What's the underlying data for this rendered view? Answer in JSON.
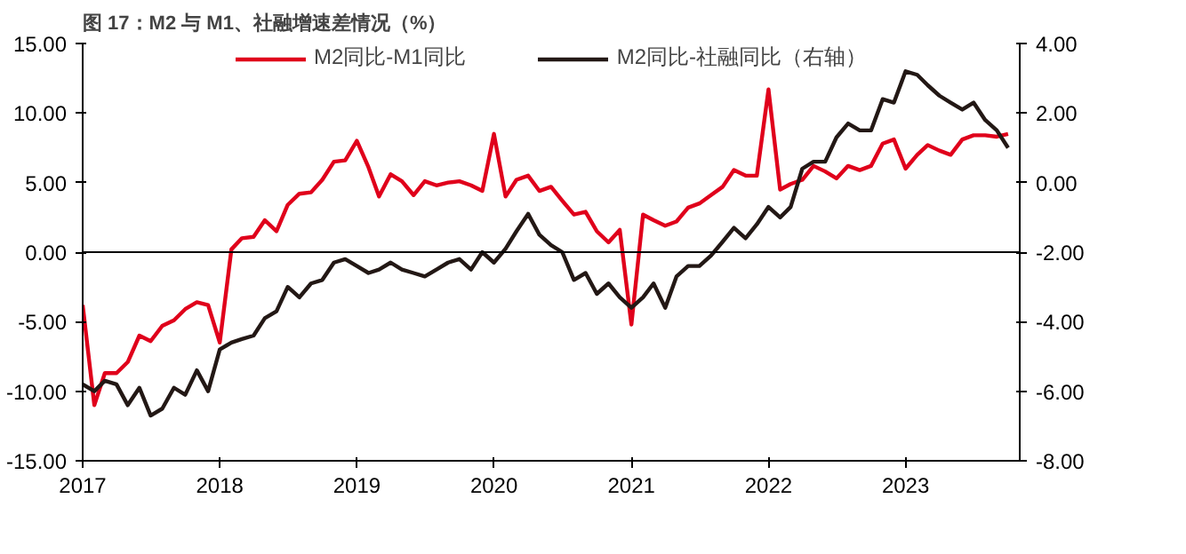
{
  "chart_data": {
    "type": "line",
    "title": "图 17：M2 与 M1、社融增速差情况（%）",
    "x": [
      "2017-01",
      "2017-02",
      "2017-03",
      "2017-04",
      "2017-05",
      "2017-06",
      "2017-07",
      "2017-08",
      "2017-09",
      "2017-10",
      "2017-11",
      "2017-12",
      "2018-01",
      "2018-02",
      "2018-03",
      "2018-04",
      "2018-05",
      "2018-06",
      "2018-07",
      "2018-08",
      "2018-09",
      "2018-10",
      "2018-11",
      "2018-12",
      "2019-01",
      "2019-02",
      "2019-03",
      "2019-04",
      "2019-05",
      "2019-06",
      "2019-07",
      "2019-08",
      "2019-09",
      "2019-10",
      "2019-11",
      "2019-12",
      "2020-01",
      "2020-02",
      "2020-03",
      "2020-04",
      "2020-05",
      "2020-06",
      "2020-07",
      "2020-08",
      "2020-09",
      "2020-10",
      "2020-11",
      "2020-12",
      "2021-01",
      "2021-02",
      "2021-03",
      "2021-04",
      "2021-05",
      "2021-06",
      "2021-07",
      "2021-08",
      "2021-09",
      "2021-10",
      "2021-11",
      "2021-12",
      "2022-01",
      "2022-02",
      "2022-03",
      "2022-04",
      "2022-05",
      "2022-06",
      "2022-07",
      "2022-08",
      "2022-09",
      "2022-10",
      "2022-11",
      "2022-12",
      "2023-01",
      "2023-02",
      "2023-03",
      "2023-04",
      "2023-05",
      "2023-06",
      "2023-07",
      "2023-08",
      "2023-09",
      "2023-10"
    ],
    "series": [
      {
        "name": "M2同比-M1同比",
        "color": "#e0001b",
        "values": [
          -3.8,
          -11.0,
          -8.7,
          -8.7,
          -7.9,
          -6.0,
          -6.4,
          -5.3,
          -4.9,
          -4.1,
          -3.6,
          -3.8,
          -6.5,
          0.2,
          1.0,
          1.1,
          2.3,
          1.5,
          3.4,
          4.2,
          4.3,
          5.2,
          6.5,
          6.6,
          8.0,
          6.1,
          4.0,
          5.6,
          5.1,
          4.1,
          5.1,
          4.8,
          5.0,
          5.1,
          4.8,
          4.4,
          8.5,
          4.0,
          5.2,
          5.5,
          4.4,
          4.7,
          3.7,
          2.7,
          2.9,
          1.5,
          0.7,
          1.6,
          -5.2,
          2.7,
          2.3,
          1.9,
          2.2,
          3.2,
          3.5,
          4.1,
          4.7,
          5.9,
          5.5,
          5.5,
          11.7,
          4.5,
          4.9,
          5.2,
          6.2,
          5.8,
          5.3,
          6.2,
          5.9,
          6.2,
          7.8,
          8.1,
          6.0,
          7.0,
          7.7,
          7.3,
          7.0,
          8.1,
          8.4,
          8.4,
          8.3,
          8.5
        ]
      },
      {
        "name": "M2同比-社融同比（右轴）",
        "color": "#231815",
        "axis": "y2",
        "values": [
          -5.8,
          -6.0,
          -5.7,
          -5.8,
          -6.4,
          -5.9,
          -6.7,
          -6.5,
          -5.9,
          -6.1,
          -5.4,
          -6.0,
          -4.8,
          -4.6,
          -4.5,
          -4.4,
          -3.9,
          -3.7,
          -3.0,
          -3.3,
          -2.9,
          -2.8,
          -2.3,
          -2.2,
          -2.4,
          -2.6,
          -2.5,
          -2.3,
          -2.5,
          -2.6,
          -2.7,
          -2.5,
          -2.3,
          -2.2,
          -2.5,
          -2.0,
          -2.3,
          -1.9,
          -1.4,
          -0.9,
          -1.5,
          -1.8,
          -2.0,
          -2.8,
          -2.6,
          -3.2,
          -2.9,
          -3.3,
          -3.6,
          -3.3,
          -2.9,
          -3.6,
          -2.7,
          -2.4,
          -2.4,
          -2.1,
          -1.7,
          -1.3,
          -1.6,
          -1.2,
          -0.7,
          -1.0,
          -0.7,
          0.4,
          0.6,
          0.6,
          1.3,
          1.7,
          1.5,
          1.5,
          2.4,
          2.3,
          3.2,
          3.1,
          2.8,
          2.5,
          2.3,
          2.1,
          2.3,
          1.8,
          1.5,
          1.0
        ]
      }
    ],
    "xlim": [
      "2017-01",
      "2023-11"
    ],
    "xticks": [
      "2017",
      "2018",
      "2019",
      "2020",
      "2021",
      "2022",
      "2023"
    ],
    "ylim": [
      -15,
      15
    ],
    "yticks": [
      {
        "value": -15,
        "label": "-15.00"
      },
      {
        "value": -10,
        "label": "-10.00"
      },
      {
        "value": -5,
        "label": "-5.00"
      },
      {
        "value": 0,
        "label": "0.00"
      },
      {
        "value": 5,
        "label": "5.00"
      },
      {
        "value": 10,
        "label": "10.00"
      },
      {
        "value": 15,
        "label": "15.00"
      }
    ],
    "y2lim": [
      -8,
      4
    ],
    "y2ticks": [
      {
        "value": -8,
        "label": "-8.00"
      },
      {
        "value": -6,
        "label": "-6.00"
      },
      {
        "value": -4,
        "label": "-4.00"
      },
      {
        "value": -2,
        "label": "-2.00"
      },
      {
        "value": 0,
        "label": "0.00"
      },
      {
        "value": 2,
        "label": "2.00"
      },
      {
        "value": 4,
        "label": "4.00"
      }
    ],
    "ref_lines": [
      {
        "axis": "y",
        "value": 0,
        "color": "#000000"
      }
    ],
    "grid": false,
    "legend": "top",
    "line_style": "solid",
    "marker": "none"
  }
}
